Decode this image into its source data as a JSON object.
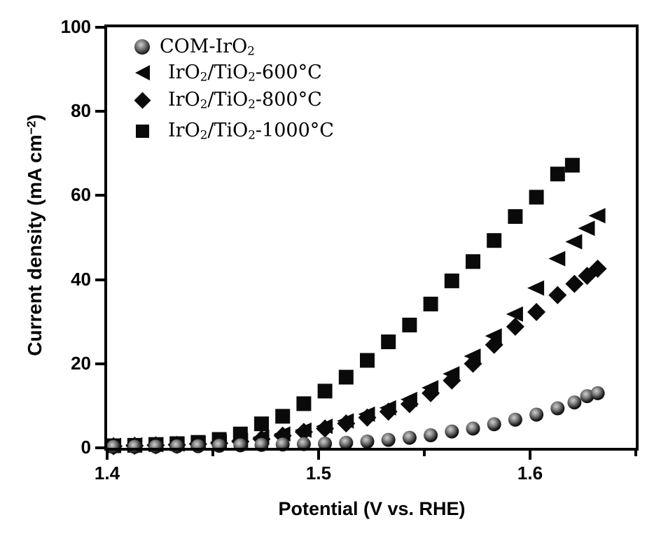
{
  "figure": {
    "background": "#ffffff",
    "axis_color": "#000000",
    "marker_color": "#0a0a0a"
  },
  "chart_data": {
    "type": "scatter",
    "title": "",
    "xlabel": "Potential (V vs. RHE)",
    "ylabel": "Current density (mA cm-2)",
    "ylabel_segments": [
      {
        "t": "Current density (mA cm"
      },
      {
        "t": "−2",
        "sup": true
      },
      {
        "t": ")"
      }
    ],
    "xlim": [
      1.4,
      1.65
    ],
    "ylim": [
      0,
      100
    ],
    "grid": false,
    "legend_position": "upper-left-inside",
    "x_major_ticks": [
      {
        "v": 1.4,
        "label": "1.4"
      },
      {
        "v": 1.5,
        "label": "1.5"
      },
      {
        "v": 1.6,
        "label": "1.6"
      }
    ],
    "x_minor_ticks": [
      1.45,
      1.55,
      1.65
    ],
    "y_major_ticks": [
      {
        "v": 0,
        "label": "0"
      },
      {
        "v": 20,
        "label": "20"
      },
      {
        "v": 40,
        "label": "40"
      },
      {
        "v": 60,
        "label": "60"
      },
      {
        "v": 80,
        "label": "80"
      },
      {
        "v": 100,
        "label": "100"
      }
    ],
    "series": [
      {
        "name": "COM-IrO2",
        "marker": "sphere",
        "color": "#0a0a0a",
        "draw_order": 4,
        "label_segments": [
          {
            "t": "COM-IrO"
          },
          {
            "t": "2",
            "sub": true
          }
        ],
        "indent": false,
        "points": [
          [
            1.403,
            0.2
          ],
          [
            1.413,
            0.25
          ],
          [
            1.423,
            0.3
          ],
          [
            1.433,
            0.35
          ],
          [
            1.443,
            0.4
          ],
          [
            1.453,
            0.5
          ],
          [
            1.463,
            0.6
          ],
          [
            1.473,
            0.7
          ],
          [
            1.483,
            0.8
          ],
          [
            1.493,
            0.9
          ],
          [
            1.503,
            1.0
          ],
          [
            1.513,
            1.2
          ],
          [
            1.523,
            1.5
          ],
          [
            1.533,
            1.9
          ],
          [
            1.543,
            2.4
          ],
          [
            1.553,
            3.0
          ],
          [
            1.563,
            3.9
          ],
          [
            1.573,
            4.6
          ],
          [
            1.583,
            5.6
          ],
          [
            1.593,
            6.7
          ],
          [
            1.603,
            7.9
          ],
          [
            1.613,
            9.4
          ],
          [
            1.621,
            10.8
          ],
          [
            1.627,
            12.3
          ],
          [
            1.632,
            13.0
          ]
        ]
      },
      {
        "name": "IrO2/TiO2-600C",
        "marker": "triangle-left",
        "color": "#0a0a0a",
        "draw_order": 2,
        "label_segments": [
          {
            "t": "IrO"
          },
          {
            "t": "2",
            "sub": true
          },
          {
            "t": "/TiO"
          },
          {
            "t": "2",
            "sub": true
          },
          {
            "t": "-600°C"
          }
        ],
        "indent": true,
        "points": [
          [
            1.403,
            0.6
          ],
          [
            1.413,
            0.7
          ],
          [
            1.423,
            0.8
          ],
          [
            1.433,
            0.9
          ],
          [
            1.443,
            1.1
          ],
          [
            1.453,
            1.4
          ],
          [
            1.463,
            1.8
          ],
          [
            1.473,
            2.5
          ],
          [
            1.483,
            3.3
          ],
          [
            1.493,
            4.2
          ],
          [
            1.503,
            5.1
          ],
          [
            1.513,
            6.4
          ],
          [
            1.523,
            8.0
          ],
          [
            1.533,
            9.5
          ],
          [
            1.543,
            11.5
          ],
          [
            1.553,
            14.3
          ],
          [
            1.563,
            17.6
          ],
          [
            1.573,
            21.8
          ],
          [
            1.583,
            26.6
          ],
          [
            1.593,
            31.8
          ],
          [
            1.603,
            38.0
          ],
          [
            1.613,
            45.0
          ],
          [
            1.621,
            49.0
          ],
          [
            1.627,
            52.2
          ],
          [
            1.632,
            55.2
          ]
        ]
      },
      {
        "name": "IrO2/TiO2-800C",
        "marker": "diamond",
        "color": "#0a0a0a",
        "draw_order": 3,
        "label_segments": [
          {
            "t": "IrO"
          },
          {
            "t": "2",
            "sub": true
          },
          {
            "t": "/TiO"
          },
          {
            "t": "2",
            "sub": true
          },
          {
            "t": "-800°C"
          }
        ],
        "indent": true,
        "points": [
          [
            1.403,
            0.4
          ],
          [
            1.413,
            0.5
          ],
          [
            1.423,
            0.6
          ],
          [
            1.433,
            0.7
          ],
          [
            1.443,
            0.9
          ],
          [
            1.453,
            1.1
          ],
          [
            1.463,
            1.5
          ],
          [
            1.473,
            2.1
          ],
          [
            1.483,
            2.9
          ],
          [
            1.493,
            3.8
          ],
          [
            1.503,
            4.6
          ],
          [
            1.513,
            5.8
          ],
          [
            1.523,
            7.2
          ],
          [
            1.533,
            8.6
          ],
          [
            1.543,
            10.4
          ],
          [
            1.553,
            13.0
          ],
          [
            1.563,
            16.0
          ],
          [
            1.573,
            20.0
          ],
          [
            1.583,
            24.5
          ],
          [
            1.593,
            28.8
          ],
          [
            1.603,
            32.3
          ],
          [
            1.613,
            36.3
          ],
          [
            1.621,
            39.0
          ],
          [
            1.627,
            40.9
          ],
          [
            1.632,
            42.6
          ]
        ]
      },
      {
        "name": "IrO2/TiO2-1000C",
        "marker": "square",
        "color": "#0a0a0a",
        "draw_order": 1,
        "label_segments": [
          {
            "t": "IrO"
          },
          {
            "t": "2",
            "sub": true
          },
          {
            "t": "/TiO"
          },
          {
            "t": "2",
            "sub": true
          },
          {
            "t": "-1000°C"
          }
        ],
        "indent": true,
        "points": [
          [
            1.403,
            0.5
          ],
          [
            1.413,
            0.6
          ],
          [
            1.423,
            0.8
          ],
          [
            1.433,
            1.0
          ],
          [
            1.443,
            1.3
          ],
          [
            1.453,
            2.0
          ],
          [
            1.463,
            3.3
          ],
          [
            1.473,
            5.7
          ],
          [
            1.483,
            7.5
          ],
          [
            1.493,
            10.5
          ],
          [
            1.503,
            13.5
          ],
          [
            1.513,
            16.8
          ],
          [
            1.523,
            20.8
          ],
          [
            1.533,
            25.2
          ],
          [
            1.543,
            29.2
          ],
          [
            1.553,
            34.2
          ],
          [
            1.563,
            39.7
          ],
          [
            1.573,
            44.3
          ],
          [
            1.583,
            49.3
          ],
          [
            1.593,
            55.0
          ],
          [
            1.603,
            59.6
          ],
          [
            1.613,
            65.1
          ],
          [
            1.62,
            67.2
          ]
        ]
      }
    ]
  }
}
